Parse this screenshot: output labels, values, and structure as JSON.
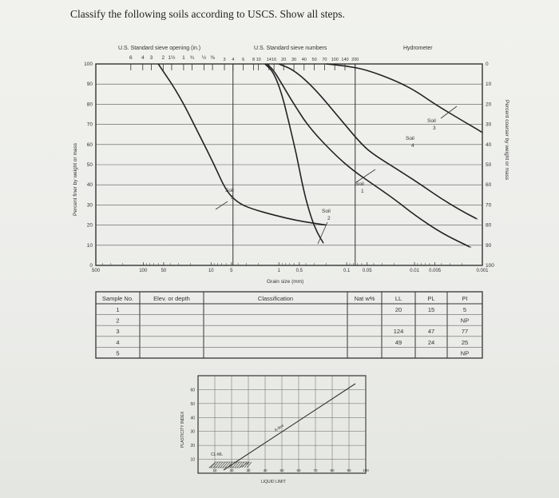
{
  "question": "Classify the following soils according to USCS. Show all steps.",
  "chart_data": {
    "type": "line",
    "top_axis": {
      "sieve_opening_label": "U.S. Standard sieve opening (in.)",
      "sieve_opening_ticks": [
        "6",
        "4",
        "3",
        "2",
        "1½",
        "1",
        "¾",
        "½",
        "⅜"
      ],
      "sieve_number_label": "U.S. Standard sieve numbers",
      "sieve_number_ticks": [
        "3",
        "4",
        "6",
        "8",
        "10",
        "14",
        "16",
        "20",
        "30",
        "40",
        "50",
        "70",
        "100",
        "140",
        "200"
      ],
      "hydrometer_label": "Hydrometer"
    },
    "ylabel": "Percent finer by weight or mass",
    "ylabel_right": "Percent coarser by weight or mass",
    "xlabel": "Grain size (mm)",
    "x_ticks": [
      "500",
      "100",
      "50",
      "10",
      "5",
      "1",
      "0.5",
      "0.1",
      "0.05",
      "0.01",
      "0.005",
      "0.001"
    ],
    "y_ticks": [
      "0",
      "10",
      "20",
      "30",
      "40",
      "50",
      "60",
      "70",
      "80",
      "90",
      "100"
    ],
    "y_ticks_right": [
      "0",
      "10",
      "20",
      "30",
      "40",
      "50",
      "60",
      "70",
      "80",
      "90",
      "100"
    ],
    "ylim": [
      0,
      100
    ],
    "x_scale": "log",
    "series": [
      {
        "name": "Soil 1",
        "x": [
          1.0,
          0.6,
          0.3,
          0.12,
          0.06,
          0.04,
          0.015,
          0.008,
          0.004,
          0.002,
          0.0012
        ],
        "y": [
          100,
          97,
          88,
          72,
          60,
          55,
          46,
          40,
          33,
          27,
          23
        ]
      },
      {
        "name": "Soil 2",
        "x": [
          1.6,
          1.2,
          0.9,
          0.7,
          0.55,
          0.45,
          0.38,
          0.32,
          0.27,
          0.22
        ],
        "y": [
          100,
          96,
          85,
          70,
          55,
          40,
          30,
          22,
          16,
          11
        ]
      },
      {
        "name": "Soil 3",
        "x": [
          0.2,
          0.1,
          0.05,
          0.02,
          0.01,
          0.005,
          0.002,
          0.001
        ],
        "y": [
          100,
          99,
          97,
          92,
          87,
          80,
          72,
          66
        ]
      },
      {
        "name": "Soil 4",
        "x": [
          1.5,
          1.2,
          0.9,
          0.6,
          0.35,
          0.15,
          0.08,
          0.04,
          0.02,
          0.01,
          0.004,
          0.0015
        ],
        "y": [
          100,
          97,
          90,
          80,
          68,
          55,
          47,
          40,
          33,
          25,
          16,
          9
        ]
      },
      {
        "name": "Soil 5",
        "x": [
          60,
          30,
          15,
          9,
          6,
          4,
          2.5,
          1.2,
          0.5,
          0.2
        ],
        "y": [
          100,
          85,
          65,
          50,
          37,
          31,
          28,
          25,
          22,
          20
        ]
      }
    ],
    "labels": [
      {
        "text": "Soil 1",
        "soil": "Soil",
        "num": "1"
      },
      {
        "text": "Soil 2",
        "soil": "Soil",
        "num": "2"
      },
      {
        "text": "Soil 3",
        "soil": "Soil",
        "num": "3"
      },
      {
        "text": "Soil 4",
        "soil": "Soil",
        "num": "4"
      },
      {
        "text": "Soil 5",
        "soil": "Soil",
        "num": "5"
      }
    ]
  },
  "table": {
    "headers": [
      "Sample No.",
      "Elev. or depth",
      "Classification",
      "Nat w%",
      "LL",
      "PL",
      "PI"
    ],
    "rows": [
      {
        "no": "1",
        "elev": "",
        "cls": "",
        "nat": "",
        "ll": "20",
        "pl": "15",
        "pi": "5"
      },
      {
        "no": "2",
        "elev": "",
        "cls": "",
        "nat": "",
        "ll": "",
        "pl": "",
        "pi": "NP"
      },
      {
        "no": "3",
        "elev": "",
        "cls": "",
        "nat": "",
        "ll": "124",
        "pl": "47",
        "pi": "77"
      },
      {
        "no": "4",
        "elev": "",
        "cls": "",
        "nat": "",
        "ll": "49",
        "pl": "24",
        "pi": "25"
      },
      {
        "no": "5",
        "elev": "",
        "cls": "",
        "nat": "",
        "ll": "",
        "pl": "",
        "pi": "NP"
      }
    ]
  },
  "plasticity_chart": {
    "ylabel": "PLASTICITY INDEX",
    "xlabel": "LIQUID LIMIT",
    "y_ticks": [
      "10",
      "20",
      "30",
      "40",
      "50",
      "60"
    ],
    "x_ticks": [
      "10",
      "20",
      "30",
      "40",
      "50",
      "60",
      "70",
      "80",
      "90",
      "100"
    ],
    "a_line_label": "A-line",
    "zone_label": "CL-ML"
  }
}
